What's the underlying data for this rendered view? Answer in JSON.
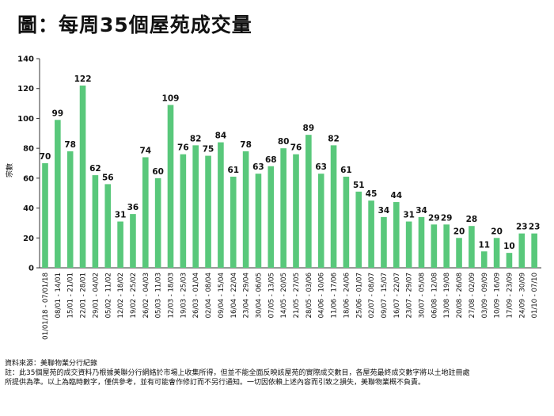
{
  "title": "圖：每周35個屋苑成交量",
  "chart_data": {
    "type": "bar",
    "title": "每周35個屋苑成交量",
    "xlabel": "",
    "ylabel": "宗數",
    "ylim": [
      0,
      140
    ],
    "yticks": [
      0,
      20,
      40,
      60,
      80,
      100,
      120,
      140
    ],
    "color": "#59c87b",
    "categories": [
      "01/01/18 - 07/01/18",
      "08/01 - 14/01",
      "15/01 - 21/01",
      "22/01 - 28/01",
      "29/01 - 04/02",
      "05/02 - 11/02",
      "12/02 - 18/02",
      "19/02 - 25/02",
      "26/02 - 04/03",
      "05/03 - 11/03",
      "12/03 - 18/03",
      "19/03 - 25/03",
      "26/03 - 01/04",
      "02/04 - 08/04",
      "09/04 - 15/04",
      "16/04 - 22/04",
      "23/04 - 29/04",
      "30/04 - 06/05",
      "07/05 - 13/05",
      "14/05 - 20/05",
      "21/05 - 27/05",
      "28/05 - 03/06",
      "04/06 - 10/06",
      "11/06 - 17/06",
      "18/06 - 24/06",
      "25/06 - 01/07",
      "02/07 - 08/07",
      "09/07 - 15/07",
      "16/07 - 22/07",
      "23/07 - 29/07",
      "30/07 - 05/08",
      "06/08 - 12/08",
      "13/08 - 19/08",
      "20/08 - 26/08",
      "27/08 - 02/09",
      "03/09 - 09/09",
      "10/09 - 16/09",
      "17/09 - 23/09",
      "24/09 - 30/09",
      "01/10 - 07/10"
    ],
    "values": [
      70,
      99,
      78,
      122,
      62,
      56,
      31,
      36,
      74,
      60,
      109,
      76,
      82,
      75,
      84,
      61,
      78,
      63,
      68,
      80,
      76,
      89,
      63,
      82,
      61,
      51,
      45,
      34,
      44,
      31,
      34,
      29,
      29,
      20,
      28,
      11,
      20,
      10,
      23,
      23
    ]
  },
  "footer": {
    "source": "資料來源：美聯物業分行紀錄",
    "note_line1": "註：此35個屋苑的成交資料乃根據美聯分行網絡於市場上收集所得，但並不能全面反映該屋苑的實際成交數目，各屋苑最終成交數字將以土地註冊處",
    "note_line2": "所提供為準。以上為臨時數字，僅供參考，並有可能會作修訂而不另行通知。一切因依賴上述內容而引致之損失，美聯物業概不負責。"
  }
}
